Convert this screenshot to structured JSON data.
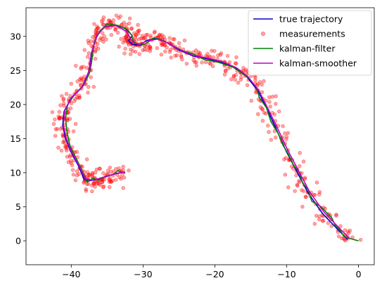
{
  "chart_data": {
    "type": "line",
    "title": "",
    "xlabel": "",
    "ylabel": "",
    "xlim": [
      -46.3,
      2.2
    ],
    "ylim": [
      -3.5,
      34.2
    ],
    "xticks": [
      -40,
      -30,
      -20,
      -10,
      0
    ],
    "yticks": [
      0,
      5,
      10,
      15,
      20,
      25,
      30
    ],
    "grid": false,
    "legend_position": "top-right",
    "series": [
      {
        "name": "true trajectory",
        "kind": "line",
        "color": "#0000cc",
        "points": [
          [
            -1.5,
            0.2
          ],
          [
            -3,
            1.8
          ],
          [
            -5,
            4.0
          ],
          [
            -7,
            7.0
          ],
          [
            -8.5,
            10.0
          ],
          [
            -10,
            13.0
          ],
          [
            -11.5,
            16.5
          ],
          [
            -12.8,
            19.5
          ],
          [
            -14,
            22.0
          ],
          [
            -15.5,
            24.0
          ],
          [
            -17,
            25.3
          ],
          [
            -19,
            26.2
          ],
          [
            -21,
            26.7
          ],
          [
            -23,
            27.1
          ],
          [
            -25,
            28.0
          ],
          [
            -26.5,
            29.0
          ],
          [
            -28,
            29.7
          ],
          [
            -29.5,
            29.4
          ],
          [
            -30.5,
            28.7
          ],
          [
            -31.5,
            28.8
          ],
          [
            -32,
            29.4
          ],
          [
            -31.5,
            30.1
          ],
          [
            -32.5,
            31.2
          ],
          [
            -34,
            31.7
          ],
          [
            -35.5,
            31.3
          ],
          [
            -36.5,
            30.0
          ],
          [
            -37.2,
            27.5
          ],
          [
            -37.5,
            25.0
          ],
          [
            -38.5,
            22.5
          ],
          [
            -40,
            21.0
          ],
          [
            -41,
            19.0
          ],
          [
            -41.2,
            17.0
          ],
          [
            -40.8,
            15.0
          ],
          [
            -40,
            13.0
          ],
          [
            -39,
            11.0
          ],
          [
            -38.2,
            9.0
          ],
          [
            -37.5,
            8.8
          ],
          [
            -36.5,
            9.0
          ],
          [
            -35.5,
            9.3
          ],
          [
            -34,
            9.8
          ],
          [
            -32.5,
            10.1
          ]
        ]
      },
      {
        "name": "measurements",
        "kind": "scatter",
        "color": "#ff0000",
        "points": []
      },
      {
        "name": "kalman-filter",
        "kind": "line",
        "color": "#008000",
        "points": [
          [
            0,
            0
          ],
          [
            -1,
            0.3
          ],
          [
            -2,
            0.6
          ],
          [
            -2.5,
            1.5
          ],
          [
            -3.2,
            2.2
          ],
          [
            -3.8,
            3.5
          ],
          [
            -4.5,
            4.2
          ],
          [
            -5.2,
            5.0
          ],
          [
            -6.5,
            5.8
          ],
          [
            -7,
            7.5
          ],
          [
            -7.8,
            8.5
          ],
          [
            -8.2,
            10.0
          ],
          [
            -9,
            11.0
          ],
          [
            -9.8,
            12.8
          ],
          [
            -10.5,
            14.0
          ],
          [
            -11.2,
            15.8
          ],
          [
            -12.2,
            17.5
          ],
          [
            -12.8,
            19.5
          ],
          [
            -13.8,
            21.0
          ],
          [
            -14.2,
            22.5
          ],
          [
            -15.2,
            23.8
          ],
          [
            -16.5,
            24.8
          ],
          [
            -17.5,
            25.5
          ],
          [
            -19.5,
            26.2
          ],
          [
            -21.5,
            26.6
          ],
          [
            -23,
            27.4
          ],
          [
            -24.5,
            27.9
          ],
          [
            -26,
            28.7
          ],
          [
            -27.5,
            29.5
          ],
          [
            -28.5,
            29.8
          ],
          [
            -29.5,
            29.0
          ],
          [
            -30.5,
            28.6
          ],
          [
            -31.3,
            29.2
          ],
          [
            -31.6,
            30.2
          ],
          [
            -32.2,
            31.0
          ],
          [
            -33.5,
            31.6
          ],
          [
            -35,
            31.8
          ],
          [
            -36,
            30.8
          ],
          [
            -36.8,
            29.2
          ],
          [
            -37,
            27.5
          ],
          [
            -37.2,
            26.0
          ],
          [
            -37.5,
            24.5
          ],
          [
            -38.3,
            22.8
          ],
          [
            -39.5,
            21.5
          ],
          [
            -40.5,
            20.0
          ],
          [
            -40.8,
            18.0
          ],
          [
            -40.6,
            16.0
          ],
          [
            -40.2,
            14.0
          ],
          [
            -39.5,
            12.5
          ],
          [
            -38.8,
            11.0
          ],
          [
            -38.2,
            9.6
          ],
          [
            -37.8,
            8.6
          ],
          [
            -37,
            9.2
          ],
          [
            -36.2,
            8.9
          ],
          [
            -35.2,
            9.5
          ],
          [
            -34.2,
            9.7
          ],
          [
            -33.5,
            10.3
          ],
          [
            -32.5,
            9.9
          ]
        ]
      },
      {
        "name": "kalman-smoother",
        "kind": "line",
        "color": "#bf00bf",
        "points": [
          [
            -1.2,
            0.3
          ],
          [
            -2.8,
            2.0
          ],
          [
            -4.8,
            4.2
          ],
          [
            -6.8,
            7.2
          ],
          [
            -8.3,
            10.2
          ],
          [
            -9.8,
            13.2
          ],
          [
            -11.3,
            16.6
          ],
          [
            -12.7,
            19.6
          ],
          [
            -13.9,
            22.1
          ],
          [
            -15.4,
            24.1
          ],
          [
            -17,
            25.4
          ],
          [
            -19,
            26.3
          ],
          [
            -21,
            26.8
          ],
          [
            -23,
            27.2
          ],
          [
            -25,
            28.1
          ],
          [
            -26.5,
            29.0
          ],
          [
            -28,
            29.6
          ],
          [
            -29.5,
            29.3
          ],
          [
            -30.5,
            28.8
          ],
          [
            -31.3,
            29.0
          ],
          [
            -31.8,
            29.7
          ],
          [
            -32.3,
            30.7
          ],
          [
            -33.8,
            31.6
          ],
          [
            -35.3,
            31.4
          ],
          [
            -36.4,
            30.2
          ],
          [
            -37.1,
            27.8
          ],
          [
            -37.4,
            25.2
          ],
          [
            -38.4,
            22.6
          ],
          [
            -39.9,
            21.1
          ],
          [
            -40.9,
            19.1
          ],
          [
            -41.1,
            17.0
          ],
          [
            -40.7,
            15.0
          ],
          [
            -39.9,
            13.0
          ],
          [
            -38.9,
            11.0
          ],
          [
            -38.1,
            9.2
          ],
          [
            -37.3,
            8.9
          ],
          [
            -36.3,
            9.1
          ],
          [
            -35.3,
            9.4
          ],
          [
            -33.8,
            9.9
          ],
          [
            -32.5,
            10.1
          ]
        ]
      }
    ]
  }
}
